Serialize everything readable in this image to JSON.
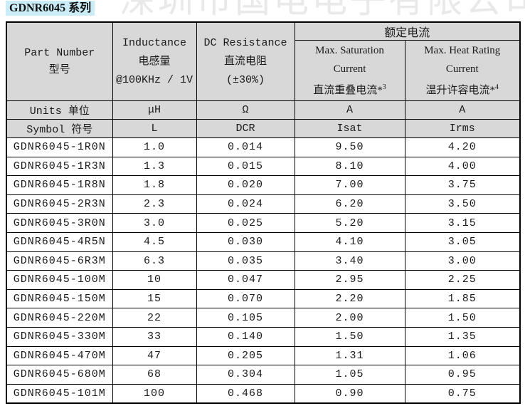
{
  "page": {
    "title": "GDNR6045 系列",
    "watermark": "深圳市国电电子有限公司",
    "colors": {
      "header_bg": "#d8d8d8",
      "title_highlight": "#c9ecf6",
      "border": "#000000",
      "watermark_text": "#e9e9e9"
    }
  },
  "table": {
    "header": {
      "part_number": {
        "en": "Part Number",
        "cn": "型号"
      },
      "inductance": {
        "en": "Inductance",
        "cn": "电感量",
        "condition": "@100KHz / 1V"
      },
      "dc_resistance": {
        "en": "DC Resistance",
        "cn": "直流电阻",
        "tolerance": "(±30%)"
      },
      "rated_current": {
        "cn": "额定电流"
      },
      "saturation": {
        "en1": "Max. Saturation",
        "en2": "Current",
        "cn": "直流重叠电流*",
        "note": "3"
      },
      "heat_rating": {
        "en1": "Max. Heat Rating",
        "en2": "Current",
        "cn": "温升许容电流*",
        "note": "4"
      }
    },
    "units_row": {
      "label": "Units 单位",
      "values": [
        "μH",
        "Ω",
        "A",
        "A"
      ]
    },
    "symbol_row": {
      "label": "Symbol 符号",
      "values": [
        "L",
        "DCR",
        "Isat",
        "Irms"
      ]
    },
    "rows": [
      {
        "part": "GDNR6045-1R0N",
        "l": "1.0",
        "dcr": "0.014",
        "isat": "9.50",
        "irms": "4.20"
      },
      {
        "part": "GDNR6045-1R3N",
        "l": "1.3",
        "dcr": "0.015",
        "isat": "8.10",
        "irms": "4.00"
      },
      {
        "part": "GDNR6045-1R8N",
        "l": "1.8",
        "dcr": "0.020",
        "isat": "7.00",
        "irms": "3.75"
      },
      {
        "part": "GDNR6045-2R3N",
        "l": "2.3",
        "dcr": "0.024",
        "isat": "6.20",
        "irms": "3.50"
      },
      {
        "part": "GDNR6045-3R0N",
        "l": "3.0",
        "dcr": "0.025",
        "isat": "5.20",
        "irms": "3.15"
      },
      {
        "part": "GDNR6045-4R5N",
        "l": "4.5",
        "dcr": "0.030",
        "isat": "4.10",
        "irms": "3.05"
      },
      {
        "part": "GDNR6045-6R3M",
        "l": "6.3",
        "dcr": "0.035",
        "isat": "3.40",
        "irms": "3.00"
      },
      {
        "part": "GDNR6045-100M",
        "l": "10",
        "dcr": "0.047",
        "isat": "2.95",
        "irms": "2.25"
      },
      {
        "part": "GDNR6045-150M",
        "l": "15",
        "dcr": "0.070",
        "isat": "2.20",
        "irms": "1.85"
      },
      {
        "part": "GDNR6045-220M",
        "l": "22",
        "dcr": "0.105",
        "isat": "2.00",
        "irms": "1.50"
      },
      {
        "part": "GDNR6045-330M",
        "l": "33",
        "dcr": "0.140",
        "isat": "1.50",
        "irms": "1.35"
      },
      {
        "part": "GDNR6045-470M",
        "l": "47",
        "dcr": "0.205",
        "isat": "1.31",
        "irms": "1.06"
      },
      {
        "part": "GDNR6045-680M",
        "l": "68",
        "dcr": "0.304",
        "isat": "1.05",
        "irms": "0.95"
      },
      {
        "part": "GDNR6045-101M",
        "l": "100",
        "dcr": "0.468",
        "isat": "0.90",
        "irms": "0.75"
      }
    ]
  }
}
